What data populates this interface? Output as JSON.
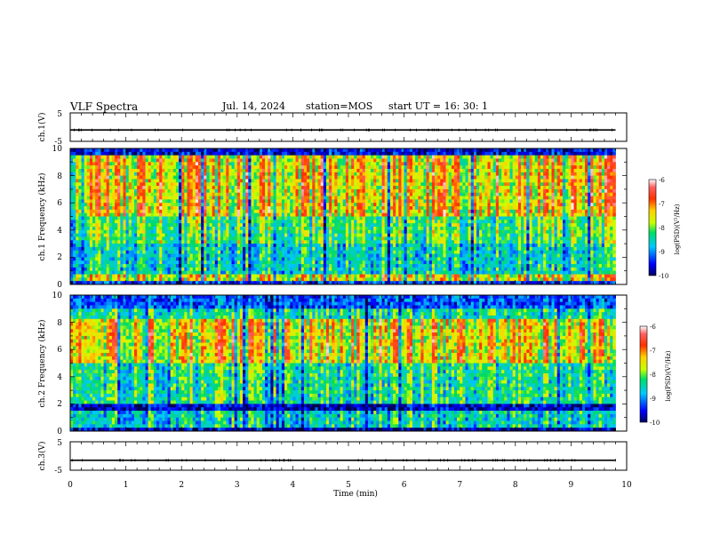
{
  "header": {
    "title": "VLF Spectra",
    "date": "Jul. 14, 2024",
    "station": "station=MOS",
    "start": "start UT =  16: 30: 1"
  },
  "chart_data": [
    {
      "type": "line",
      "panel": "ch1_voltage",
      "ylabel": "ch.1(V)",
      "ylim": [
        -5,
        5
      ],
      "yticks": [
        "5",
        "-5"
      ],
      "xlim": [
        0,
        10
      ],
      "series": [
        {
          "x": [
            0,
            9.8
          ],
          "values": [
            -1,
            -1
          ]
        }
      ]
    },
    {
      "type": "heatmap",
      "panel": "ch1_spectrogram",
      "ylabel": "ch.1 Frequency (kHz)",
      "ylim": [
        0,
        10
      ],
      "yticks": [
        "0",
        "2",
        "4",
        "6",
        "8",
        "10"
      ],
      "xlim": [
        0,
        10
      ],
      "data_end_minutes": 9.8,
      "colorbar": {
        "label": "log(PSD)(V²/Hz)",
        "range": [
          -10,
          -6
        ],
        "ticks": [
          "-6",
          "-7",
          "-8",
          "-9",
          "-10"
        ]
      }
    },
    {
      "type": "heatmap",
      "panel": "ch2_spectrogram",
      "ylabel": "ch.2 Frequency (kHz)",
      "ylim": [
        0,
        10
      ],
      "yticks": [
        "0",
        "2",
        "4",
        "6",
        "8",
        "10"
      ],
      "xlim": [
        0,
        10
      ],
      "data_end_minutes": 9.8,
      "colorbar": {
        "label": "log(PSD)(V²/Hz)",
        "range": [
          -10,
          -6
        ],
        "ticks": [
          "-6",
          "-7",
          "-8",
          "-9",
          "-10"
        ]
      }
    },
    {
      "type": "line",
      "panel": "ch3_voltage",
      "ylabel": "ch.3(V)",
      "ylim": [
        -5,
        5
      ],
      "yticks": [
        "5",
        "-5"
      ],
      "xlim": [
        0,
        10
      ],
      "xlabel": "Time (min)",
      "xticks": [
        "0",
        "1",
        "2",
        "3",
        "4",
        "5",
        "6",
        "7",
        "8",
        "9",
        "10"
      ],
      "series": [
        {
          "x": [
            0,
            9.8
          ],
          "values": [
            -1.5,
            -1.5
          ]
        }
      ]
    }
  ]
}
